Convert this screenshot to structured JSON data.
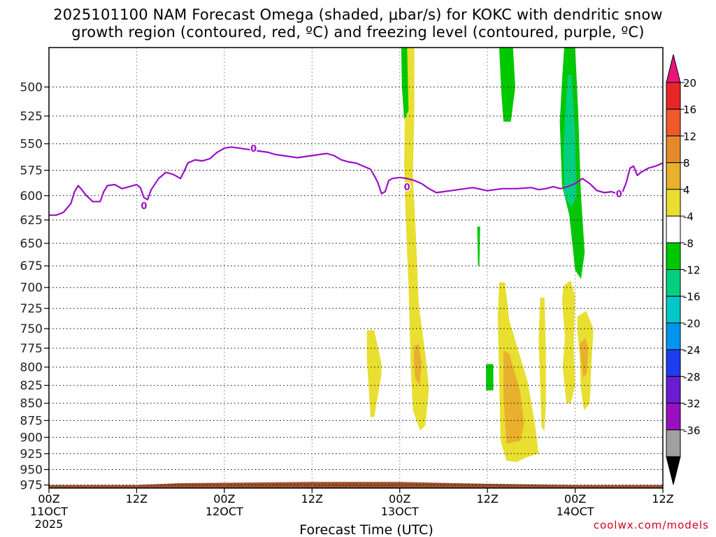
{
  "title": {
    "line1": "2025101100 NAM Forecast Omega (shaded, μbar/s) for KOKC with dendritic snow",
    "line2": "growth region (contoured, red, ºC) and freezing level (contoured, purple, ºC)"
  },
  "credit": "coolwx.com/models",
  "chart_data": {
    "type": "heatmap",
    "title": "2025101100 NAM Forecast Omega (shaded, μbar/s) for KOKC with dendritic snow growth region (contoured, red, ºC) and freezing level (contoured, purple, ºC)",
    "xlabel": "Forecast Time (UTC)",
    "ylabel": "",
    "x_unit": "hours",
    "xlim": [
      0,
      84
    ],
    "ylim": [
      980,
      468
    ],
    "y_scale": "log",
    "x_ticks": [
      {
        "hour": 0,
        "label": "00Z",
        "date": "11OCT",
        "year": "2025"
      },
      {
        "hour": 12,
        "label": "12Z"
      },
      {
        "hour": 24,
        "label": "00Z",
        "date": "12OCT"
      },
      {
        "hour": 36,
        "label": "12Z"
      },
      {
        "hour": 48,
        "label": "00Z",
        "date": "13OCT"
      },
      {
        "hour": 60,
        "label": "12Z"
      },
      {
        "hour": 72,
        "label": "00Z",
        "date": "14OCT"
      },
      {
        "hour": 84,
        "label": "12Z"
      }
    ],
    "y_ticks": [
      500,
      525,
      550,
      575,
      600,
      625,
      650,
      675,
      700,
      725,
      750,
      775,
      800,
      825,
      850,
      875,
      900,
      925,
      950,
      975
    ],
    "grid": true,
    "colorbar": {
      "labels": [
        "20",
        "16",
        "12",
        "8",
        "4",
        "-4",
        "-8",
        "-12",
        "-16",
        "-20",
        "-24",
        "-28",
        "-32",
        "-36"
      ],
      "bins": [
        {
          "color": "#e8157a"
        },
        {
          "color": "#e8262a"
        },
        {
          "color": "#f05a28"
        },
        {
          "color": "#e6892a"
        },
        {
          "color": "#e8b02c"
        },
        {
          "color": "#e8df30"
        },
        {
          "color": "#ffffff"
        },
        {
          "color": "#00c800"
        },
        {
          "color": "#00d080"
        },
        {
          "color": "#00c8c8"
        },
        {
          "color": "#0096f0"
        },
        {
          "color": "#1e3cf0"
        },
        {
          "color": "#6a1cd0"
        },
        {
          "color": "#9a10c0"
        },
        {
          "color": "#a0a0a0"
        },
        {
          "color": "#000000"
        }
      ]
    },
    "freezing_level": {
      "label": "0",
      "color": "#9b10c8",
      "label_points": [
        [
          13,
          610
        ],
        [
          28,
          554
        ],
        [
          49,
          591
        ],
        [
          78,
          598
        ]
      ],
      "points": [
        [
          0,
          620
        ],
        [
          1,
          620
        ],
        [
          2,
          617
        ],
        [
          3,
          608
        ],
        [
          3.5,
          596
        ],
        [
          4,
          590
        ],
        [
          4.5,
          594
        ],
        [
          5,
          599
        ],
        [
          6,
          606
        ],
        [
          7,
          606
        ],
        [
          7.5,
          596
        ],
        [
          8,
          590
        ],
        [
          9,
          589
        ],
        [
          10,
          593
        ],
        [
          11,
          591
        ],
        [
          12,
          589
        ],
        [
          12.5,
          592
        ],
        [
          13,
          602
        ],
        [
          13.5,
          604
        ],
        [
          14,
          594
        ],
        [
          15,
          583
        ],
        [
          16,
          577
        ],
        [
          17,
          579
        ],
        [
          18,
          583
        ],
        [
          18.5,
          576
        ],
        [
          19,
          568
        ],
        [
          20,
          565
        ],
        [
          21,
          566
        ],
        [
          22,
          564
        ],
        [
          23,
          558
        ],
        [
          24,
          554
        ],
        [
          25,
          553
        ],
        [
          26,
          554
        ],
        [
          27,
          555
        ],
        [
          28,
          556
        ],
        [
          29,
          557
        ],
        [
          30,
          558
        ],
        [
          31,
          560
        ],
        [
          32,
          561
        ],
        [
          33,
          562
        ],
        [
          34,
          563
        ],
        [
          35,
          562
        ],
        [
          36,
          561
        ],
        [
          37,
          560
        ],
        [
          38,
          559
        ],
        [
          39,
          561
        ],
        [
          40,
          565
        ],
        [
          41,
          567
        ],
        [
          42,
          568
        ],
        [
          43,
          571
        ],
        [
          44,
          574
        ],
        [
          44.5,
          580
        ],
        [
          45,
          587
        ],
        [
          45.5,
          598
        ],
        [
          46,
          596
        ],
        [
          46.5,
          585
        ],
        [
          47,
          583
        ],
        [
          48,
          582
        ],
        [
          49,
          583
        ],
        [
          50,
          585
        ],
        [
          51,
          588
        ],
        [
          52,
          593
        ],
        [
          53,
          597
        ],
        [
          54,
          596
        ],
        [
          55,
          595
        ],
        [
          56,
          594
        ],
        [
          58,
          592
        ],
        [
          60,
          595
        ],
        [
          62,
          593
        ],
        [
          64,
          593
        ],
        [
          66,
          592
        ],
        [
          67,
          594
        ],
        [
          68,
          593
        ],
        [
          69,
          591
        ],
        [
          70,
          593
        ],
        [
          71,
          591
        ],
        [
          72,
          588
        ],
        [
          73,
          583
        ],
        [
          74,
          588
        ],
        [
          75,
          595
        ],
        [
          76,
          597
        ],
        [
          77,
          596
        ],
        [
          78,
          599
        ],
        [
          78.5,
          596
        ],
        [
          79,
          587
        ],
        [
          79.5,
          573
        ],
        [
          80,
          571
        ],
        [
          80.5,
          580
        ],
        [
          81,
          577
        ],
        [
          82,
          573
        ],
        [
          83,
          571
        ],
        [
          84,
          568
        ]
      ]
    },
    "omega_regions": [
      {
        "color": "#e8df30",
        "points": [
          [
            43.5,
            752
          ],
          [
            44.5,
            752
          ],
          [
            45.5,
            795
          ],
          [
            45.5,
            810
          ],
          [
            44.5,
            870
          ],
          [
            44,
            870
          ],
          [
            43.5,
            790
          ]
        ]
      },
      {
        "color": "#e8df30",
        "points": [
          [
            48.8,
            468
          ],
          [
            50,
            468
          ],
          [
            50,
            520
          ],
          [
            49.8,
            580
          ],
          [
            50.2,
            640
          ],
          [
            50.6,
            720
          ],
          [
            51.6,
            790
          ],
          [
            52,
            830
          ],
          [
            51.5,
            882
          ],
          [
            50.8,
            890
          ],
          [
            49.8,
            860
          ],
          [
            49.5,
            800
          ],
          [
            49.2,
            700
          ],
          [
            48.8,
            620
          ],
          [
            48.6,
            570
          ]
        ]
      },
      {
        "color": "#e8b02c",
        "points": [
          [
            50,
            772
          ],
          [
            50.6,
            770
          ],
          [
            51,
            795
          ],
          [
            50.7,
            825
          ],
          [
            50.1,
            815
          ],
          [
            49.9,
            790
          ]
        ]
      },
      {
        "color": "#e8df30",
        "points": [
          [
            61.6,
            694
          ],
          [
            62.4,
            694
          ],
          [
            63,
            740
          ],
          [
            65.5,
            820
          ],
          [
            66.5,
            880
          ],
          [
            67,
            925
          ],
          [
            65.5,
            930
          ],
          [
            64,
            938
          ],
          [
            62.6,
            936
          ],
          [
            61.8,
            905
          ],
          [
            61.6,
            820
          ],
          [
            61.4,
            735
          ]
        ]
      },
      {
        "color": "#e8b02c",
        "points": [
          [
            62.2,
            778
          ],
          [
            63,
            782
          ],
          [
            64.5,
            835
          ],
          [
            65,
            880
          ],
          [
            64.5,
            905
          ],
          [
            62.6,
            910
          ],
          [
            62.2,
            840
          ]
        ]
      },
      {
        "color": "#e8df30",
        "points": [
          [
            67.2,
            712
          ],
          [
            67.8,
            712
          ],
          [
            68,
            780
          ],
          [
            68,
            850
          ],
          [
            67.8,
            890
          ],
          [
            67.4,
            885
          ],
          [
            67.2,
            820
          ],
          [
            67,
            765
          ]
        ]
      },
      {
        "color": "#e8df30",
        "points": [
          [
            70.4,
            698
          ],
          [
            71.4,
            692
          ],
          [
            72,
            710
          ],
          [
            71.8,
            770
          ],
          [
            72,
            825
          ],
          [
            71.4,
            850
          ],
          [
            70.8,
            850
          ],
          [
            70.3,
            800
          ],
          [
            70.6,
            760
          ],
          [
            70.2,
            715
          ]
        ]
      },
      {
        "color": "#e8df30",
        "points": [
          [
            72.3,
            735
          ],
          [
            73.5,
            728
          ],
          [
            74.5,
            750
          ],
          [
            74.2,
            800
          ],
          [
            74,
            850
          ],
          [
            73.2,
            860
          ],
          [
            72.8,
            830
          ],
          [
            72.6,
            780
          ],
          [
            72.3,
            755
          ]
        ]
      },
      {
        "color": "#e8b02c",
        "points": [
          [
            72.6,
            770
          ],
          [
            73.4,
            762
          ],
          [
            73.8,
            775
          ],
          [
            73.6,
            808
          ],
          [
            73.1,
            815
          ],
          [
            72.8,
            790
          ]
        ]
      },
      {
        "color": "#00c800",
        "points": [
          [
            48.2,
            468
          ],
          [
            49,
            468
          ],
          [
            49.2,
            520
          ],
          [
            48.6,
            528
          ],
          [
            48.3,
            500
          ]
        ]
      },
      {
        "color": "#00c800",
        "points": [
          [
            61.6,
            468
          ],
          [
            63.5,
            468
          ],
          [
            63.8,
            500
          ],
          [
            63.2,
            530
          ],
          [
            62.2,
            530
          ],
          [
            61.9,
            505
          ]
        ]
      },
      {
        "color": "#00c800",
        "points": [
          [
            58.6,
            632
          ],
          [
            59,
            632
          ],
          [
            58.9,
            675
          ],
          [
            58.7,
            675
          ]
        ]
      },
      {
        "color": "#00c800",
        "points": [
          [
            59.8,
            796
          ],
          [
            60.8,
            796
          ],
          [
            60.8,
            832
          ],
          [
            59.8,
            832
          ]
        ]
      },
      {
        "color": "#00c800",
        "points": [
          [
            70.5,
            468
          ],
          [
            72,
            468
          ],
          [
            72.4,
            520
          ],
          [
            72.8,
            600
          ],
          [
            73.3,
            660
          ],
          [
            72.8,
            690
          ],
          [
            72,
            680
          ],
          [
            71.2,
            620
          ],
          [
            70.2,
            590
          ],
          [
            69.9,
            530
          ],
          [
            70.2,
            495
          ]
        ]
      },
      {
        "color": "#00d080",
        "points": [
          [
            71,
            490
          ],
          [
            71.5,
            490
          ],
          [
            72,
            540
          ],
          [
            72.2,
            600
          ],
          [
            71.5,
            612
          ],
          [
            70.5,
            600
          ],
          [
            70.4,
            550
          ]
        ]
      }
    ],
    "surface": {
      "color": "#a0522d",
      "top_pressure": [
        [
          0,
          975
        ],
        [
          12,
          975
        ],
        [
          18,
          972
        ],
        [
          36,
          970
        ],
        [
          48,
          970
        ],
        [
          60,
          973
        ],
        [
          72,
          975
        ],
        [
          84,
          975
        ]
      ]
    }
  }
}
